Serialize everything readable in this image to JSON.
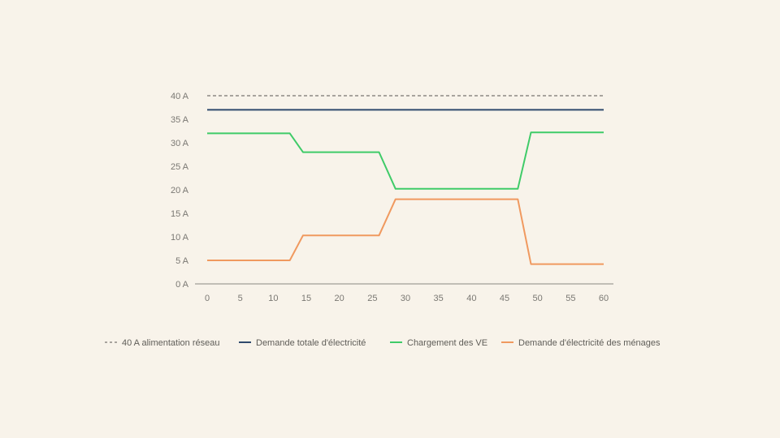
{
  "chart_data": {
    "type": "line",
    "x": [
      0,
      1,
      2,
      3,
      4,
      5,
      6,
      7,
      8,
      9,
      10,
      11,
      12,
      13,
      14,
      15,
      16,
      17,
      18,
      19,
      20,
      21,
      22,
      23,
      24,
      25,
      26,
      27,
      28,
      29,
      30,
      31,
      32,
      33,
      34,
      35,
      36,
      37,
      38,
      39,
      40,
      41,
      42,
      43,
      44,
      45,
      46,
      47,
      48,
      49,
      50,
      51,
      52,
      53,
      54,
      55,
      56,
      57,
      58,
      59,
      60
    ],
    "x_ticks": [
      0,
      5,
      10,
      15,
      20,
      25,
      30,
      35,
      40,
      45,
      50,
      55,
      60
    ],
    "x_tick_labels": [
      "0",
      "5",
      "10",
      "15",
      "20",
      "25",
      "30",
      "35",
      "40",
      "45",
      "50",
      "55",
      "60"
    ],
    "y_ticks": [
      0,
      5,
      10,
      15,
      20,
      25,
      30,
      35,
      40
    ],
    "y_tick_labels": [
      "0 A",
      "5 A",
      "10 A",
      "15 A",
      "20 A",
      "25 A",
      "30 A",
      "35 A",
      "40 A"
    ],
    "xlim": [
      0,
      60
    ],
    "ylim": [
      0,
      40
    ],
    "grid": false,
    "legend_position": "bottom",
    "series": [
      {
        "name": "40 A alimentation réseau",
        "color": "#77756f",
        "dashed": true,
        "x": [
          0,
          60
        ],
        "values": [
          40,
          40
        ]
      },
      {
        "name": "Demande totale d'électricité",
        "color": "#2f4a6d",
        "dashed": false,
        "x": [
          0,
          60
        ],
        "values": [
          37,
          37
        ]
      },
      {
        "name": "Chargement des VE",
        "color": "#3fcb68",
        "dashed": false,
        "x": [
          0,
          12.5,
          14.5,
          26,
          28.5,
          47,
          49,
          60
        ],
        "values": [
          32,
          32,
          28,
          28,
          20.2,
          20.2,
          32.2,
          32.2
        ]
      },
      {
        "name": "Demande d'électricité des ménages",
        "color": "#f0995f",
        "dashed": false,
        "x": [
          0,
          12.5,
          14.5,
          26,
          28.5,
          47,
          49,
          60
        ],
        "values": [
          5,
          5,
          10.3,
          10.3,
          18,
          18,
          4.2,
          4.2
        ]
      }
    ]
  }
}
